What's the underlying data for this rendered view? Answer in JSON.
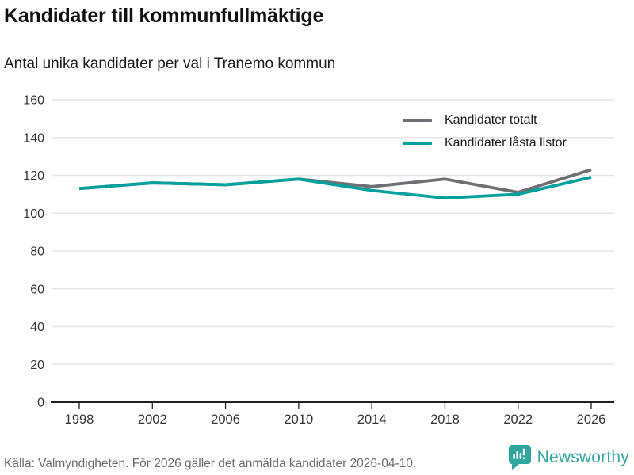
{
  "header": {
    "title": "Kandidater till kommunfullmäktige",
    "subtitle": "Antal unika kandidater per val i Tranemo kommun"
  },
  "chart_data": {
    "type": "line",
    "categories": [
      "1998",
      "2002",
      "2006",
      "2010",
      "2014",
      "2018",
      "2022",
      "2026"
    ],
    "series": [
      {
        "name": "Kandidater totalt",
        "color": "#6e6e73",
        "values": [
          113,
          116,
          115,
          118,
          114,
          118,
          111,
          123
        ]
      },
      {
        "name": "Kandidater låsta listor",
        "color": "#00a19c",
        "values": [
          113,
          116,
          115,
          118,
          112,
          108,
          110,
          119
        ]
      }
    ],
    "title": "Kandidater till kommunfullmäktige",
    "subtitle": "Antal unika kandidater per val i Tranemo kommun",
    "xlabel": "",
    "ylabel": "",
    "ylim": [
      0,
      160
    ],
    "ytick_step": 20,
    "grid": true,
    "legend_position": "top-right"
  },
  "colors": {
    "grid": "#e6e6e6",
    "axis": "#1f1f1f",
    "axis_label": "#333333"
  },
  "footer": {
    "source": "Källa: Valmyndigheten. För 2026 gäller det anmälda kandidater 2026-04-10.",
    "brand": "Newsworthy",
    "brand_color": "#2fa79e"
  }
}
